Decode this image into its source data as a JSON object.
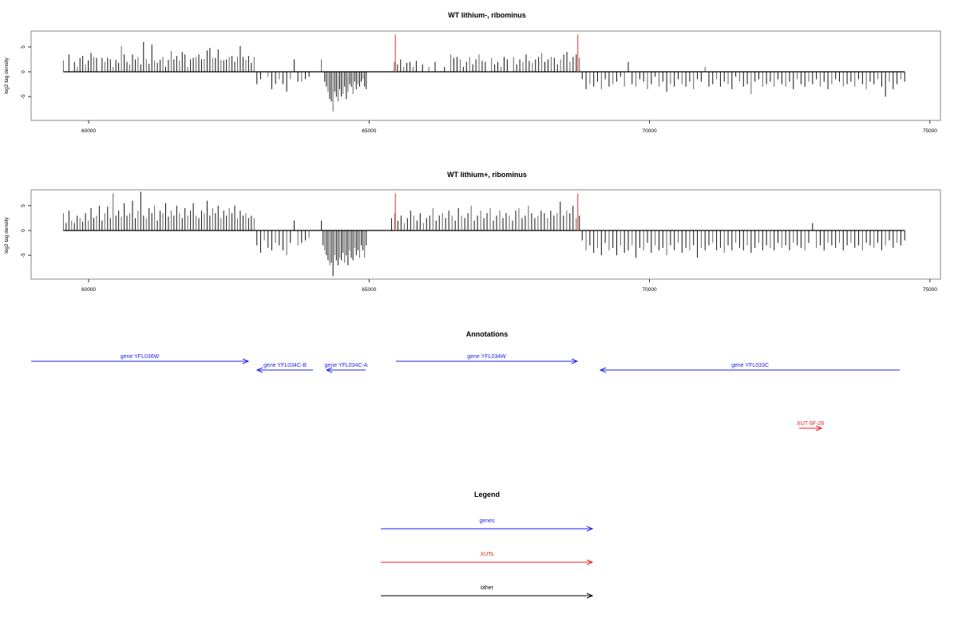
{
  "chart_data": [
    {
      "type": "bar",
      "title": "WT lithium-, ribominus",
      "ylabel": "log2 tag density",
      "xlim": [
        58975,
        75187
      ],
      "ylim": [
        -9.8,
        8.2
      ],
      "xticks": [
        60000,
        65000,
        70000,
        75000
      ],
      "yticks": [
        -5,
        0,
        5
      ],
      "markers": {
        "color": "#f07070",
        "x": [
          65470,
          68720
        ],
        "height": 7.5
      },
      "regions": [
        {
          "start": 59550,
          "end": 62950,
          "values": [
            2.3,
            0,
            3.5,
            0,
            2,
            1,
            2.8,
            3.2,
            1.5,
            2.3,
            3.8,
            3,
            2.8,
            0,
            2.8,
            2,
            2.8,
            2.5,
            1,
            2.4,
            1.8,
            5.2,
            3.5,
            2,
            1.5,
            3.5,
            2.5,
            3,
            1.5,
            6,
            2.6,
            1.6,
            5.5,
            2.3,
            1.8,
            2.4,
            3,
            1,
            2.4,
            4.2,
            2.5,
            3.2,
            2.3,
            4,
            3.5,
            1,
            2.5,
            2.8,
            3,
            3.5,
            2.5,
            2.6,
            4.3,
            4.8,
            2.8,
            2.8,
            4.5,
            2.4,
            2.3,
            2.5,
            3,
            3.2,
            2,
            3,
            5.2,
            3,
            2.4,
            3.2,
            1.8,
            3
          ]
        },
        {
          "start": 63000,
          "end": 63930,
          "values": [
            -2.5,
            -1.5,
            0,
            -1,
            -3.5,
            -2.5,
            -1.5,
            -2.5,
            -4,
            -1.5,
            2.5,
            -2,
            -2,
            -1.5,
            -1
          ]
        },
        {
          "start": 64150,
          "end": 64950,
          "values": [
            2.5,
            0,
            -2,
            -3,
            -4,
            -5.5,
            -6,
            -8,
            -4,
            -5,
            -6,
            -3.5,
            -5,
            -4.5,
            -3,
            -5.5,
            -4,
            -2.5,
            -3,
            -4.5,
            -2,
            -3.5,
            -2.5,
            -3,
            -2,
            -1.5,
            -3,
            -3.5
          ]
        },
        {
          "start": 65450,
          "end": 68750,
          "values": [
            2,
            1.5,
            2.5,
            1,
            1.8,
            2,
            1,
            2.2,
            0,
            1.5,
            0,
            1,
            0,
            2,
            0,
            0,
            1,
            0,
            3.5,
            2.8,
            3,
            2.5,
            1,
            2,
            3,
            1.5,
            2.5,
            3.5,
            2.2,
            2,
            0,
            2.8,
            1.5,
            2,
            1,
            3,
            2.5,
            0,
            3,
            1.5,
            2.5,
            2,
            3.5,
            2.2,
            1.8,
            2.5,
            3,
            3.8,
            2,
            2.5,
            3,
            2.8,
            1.5,
            2.5,
            3.5,
            4,
            2,
            3,
            3.5,
            2.8
          ]
        },
        {
          "start": 68800,
          "end": 74550,
          "values": [
            -1.5,
            -3.5,
            -2.5,
            -3,
            -2,
            -3.5,
            -1.5,
            -3,
            -2.5,
            -2,
            -1,
            -3,
            2,
            -2.5,
            -3,
            -1.5,
            -2,
            -3.5,
            -2.5,
            -1,
            -3,
            -2,
            -4,
            -2.5,
            -3,
            -1.5,
            -2.5,
            -3,
            -2,
            -3.5,
            -1.5,
            -2,
            1,
            -3,
            -2.5,
            -1.5,
            -3,
            -2,
            -2.5,
            -3.5,
            -1,
            -2,
            -3,
            -2.5,
            -4.5,
            -2,
            -1.5,
            -3,
            -2.5,
            -2,
            -3,
            -1.5,
            -2.5,
            -3,
            -2,
            -3.5,
            -1.5,
            -2.5,
            -3,
            -2,
            -2.5,
            -1.5,
            -3,
            -2,
            -3.5,
            -2.5,
            -1.5,
            -2,
            -3,
            -2.5,
            -2,
            -3,
            -1.5,
            -2.5,
            -3.5,
            -2,
            -2.5,
            -1.5,
            -3,
            -5,
            -2,
            -3.5,
            -2.5,
            -1.5,
            -2
          ]
        }
      ]
    },
    {
      "type": "bar",
      "title": "WT lithium+, ribominus",
      "ylabel": "log2 tag density",
      "xlim": [
        58975,
        75187
      ],
      "ylim": [
        -9.8,
        8.2
      ],
      "xticks": [
        60000,
        65000,
        70000,
        75000
      ],
      "yticks": [
        -5,
        0,
        5
      ],
      "markers": {
        "color": "#f07070",
        "x": [
          65470,
          68720
        ],
        "height": 7.5
      },
      "regions": [
        {
          "start": 59550,
          "end": 62950,
          "values": [
            3.5,
            1.5,
            4,
            2,
            1.5,
            3,
            2.5,
            1.8,
            3.5,
            2,
            4.5,
            2.5,
            3,
            5,
            2,
            3.5,
            4.8,
            2.5,
            7.5,
            3,
            4,
            2.8,
            5.5,
            3,
            3.5,
            6,
            2.5,
            4,
            7.8,
            3,
            2.5,
            4.5,
            3.5,
            5,
            2,
            4,
            3.5,
            5.5,
            2.8,
            4,
            3,
            5,
            3.5,
            2.5,
            4.5,
            3,
            4,
            5.5,
            3,
            2.5,
            4,
            3.5,
            6,
            3,
            4.5,
            3.5,
            5,
            2.5,
            4,
            3,
            4.5,
            3.5,
            5,
            2.5,
            4,
            3,
            3.5,
            2.5,
            3,
            2.5
          ]
        },
        {
          "start": 63000,
          "end": 63930,
          "values": [
            -3,
            -4.5,
            -2,
            -3.5,
            -4,
            -2.5,
            -3,
            -4,
            -5,
            -2.5,
            2,
            -3,
            -2.5,
            -2,
            -1.5
          ]
        },
        {
          "start": 64150,
          "end": 64950,
          "values": [
            2,
            -3,
            -4,
            -5,
            -6,
            -7,
            -6.5,
            -9.2,
            -5,
            -6,
            -7,
            -5.5,
            -6,
            -4.5,
            -6.5,
            -5,
            -7,
            -4,
            -5.5,
            -6,
            -3.5,
            -5,
            -4,
            -5.5,
            -3,
            -4,
            -5.5,
            -3
          ]
        },
        {
          "start": 65400,
          "end": 68750,
          "values": [
            2.5,
            3.5,
            2,
            3,
            1.5,
            2.5,
            4,
            3,
            2,
            3.5,
            1.5,
            2.5,
            3,
            4.5,
            2,
            3,
            3.5,
            2.5,
            4,
            3,
            2,
            4.5,
            3,
            2.5,
            3.5,
            5,
            2,
            3,
            4,
            2.5,
            3.5,
            4.5,
            2,
            3,
            4,
            2.5,
            3.5,
            3,
            2,
            4,
            4.5,
            2.5,
            3,
            5,
            3.5,
            2.5,
            3,
            4,
            3.5,
            2.5,
            4,
            3,
            3.5,
            5.8,
            3,
            4,
            3.5,
            5,
            2.5,
            3
          ]
        },
        {
          "start": 68800,
          "end": 74550,
          "values": [
            -2,
            -4,
            -3,
            -4.5,
            -3.5,
            -5,
            -2.5,
            -4,
            -3.5,
            -5,
            -3,
            -4.5,
            -4,
            -3,
            -5.5,
            -3.5,
            -4,
            -2.5,
            -4.5,
            -3,
            -4,
            -3.5,
            -5,
            -3,
            -4,
            -2.5,
            -4.5,
            -3.5,
            -4,
            -3,
            -5.5,
            -3.5,
            -4,
            -3,
            -2.5,
            -4,
            -3.5,
            -4.5,
            -3,
            -4,
            -2.5,
            -3.5,
            -4,
            -3,
            -4.5,
            -3.5,
            -2.5,
            -4,
            -3,
            -3.5,
            -4,
            -2.5,
            -3.5,
            -3,
            -4,
            -2.5,
            -3,
            -3.5,
            -4,
            -2.5,
            1.5,
            -3.5,
            -3,
            -4,
            -2.5,
            -3,
            -3.5,
            -2.5,
            -4,
            -3,
            -2.5,
            -3.5,
            -3,
            -4,
            -2.5,
            -3,
            -3.5,
            -2.5,
            -4,
            -3,
            -2,
            -3.5,
            -2.5,
            -3,
            -2
          ]
        }
      ]
    }
  ],
  "annotations": {
    "title": "Annotations",
    "items": [
      {
        "label": "gene YFL036W",
        "start": 58975,
        "end": 62847,
        "strand": "+",
        "row": 1,
        "type": "gene"
      },
      {
        "label": "gene YFL034C-B",
        "start": 63003,
        "end": 64000,
        "strand": "-",
        "row": 2,
        "type": "gene"
      },
      {
        "label": "gene YFL034C-A",
        "start": 64242,
        "end": 64939,
        "strand": "-",
        "row": 2,
        "type": "gene"
      },
      {
        "label": "gene YFL034W",
        "start": 65479,
        "end": 68711,
        "strand": "+",
        "row": 1,
        "type": "gene"
      },
      {
        "label": "gene YFL033C",
        "start": 69124,
        "end": 74462,
        "strand": "-",
        "row": 2,
        "type": "gene"
      },
      {
        "label": "XUT 6F-28",
        "start": 72669,
        "end": 73068,
        "strand": "+",
        "row": 3,
        "type": "xut"
      }
    ]
  },
  "legend": {
    "title": "Legend",
    "items": [
      {
        "label": "genes",
        "color": "#2222ee"
      },
      {
        "label": "XUTs",
        "color": "#ee2222"
      },
      {
        "label": "other",
        "color": "#000000"
      }
    ]
  },
  "colors": {
    "gene": "#2222ee",
    "xut": "#ee2222",
    "bar_dark": "#111111",
    "bar_light": "#666666"
  }
}
